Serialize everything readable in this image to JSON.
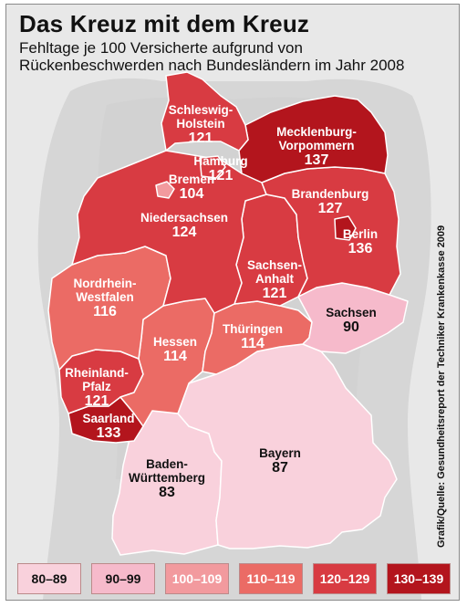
{
  "title": "Das Kreuz mit dem Kreuz",
  "subtitle": "Fehltage je 100 Versicherte aufgrund von Rückenbeschwerden nach Bundesländern im Jahr 2008",
  "source": "Grafik/Quelle: Gesundheitsreport der Techniker Krankenkasse 2009",
  "legend": [
    {
      "label": "80–89",
      "color": "#f9d1dc"
    },
    {
      "label": "90–99",
      "color": "#f6bacb"
    },
    {
      "label": "100–109",
      "color": "#f29a9e"
    },
    {
      "label": "110–119",
      "color": "#eb6b65"
    },
    {
      "label": "120–129",
      "color": "#d83b42"
    },
    {
      "label": "130–139",
      "color": "#b3151d"
    }
  ],
  "states": [
    {
      "id": "schleswig-holstein",
      "name": "Schleswig-Holstein",
      "name_lines": [
        "Schleswig-",
        "Holstein"
      ],
      "value": 121,
      "color": "#d83b42"
    },
    {
      "id": "hamburg",
      "name": "Hamburg",
      "name_lines": [
        "Hamburg"
      ],
      "value": 121,
      "color": "#d83b42"
    },
    {
      "id": "mecklenburg-vorpommern",
      "name": "Mecklenburg-Vorpommern",
      "name_lines": [
        "Mecklenburg-",
        "Vorpommern"
      ],
      "value": 137,
      "color": "#b3151d"
    },
    {
      "id": "bremen",
      "name": "Bremen",
      "name_lines": [
        "Bremen"
      ],
      "value": 104,
      "color": "#f29a9e"
    },
    {
      "id": "niedersachsen",
      "name": "Niedersachsen",
      "name_lines": [
        "Niedersachsen"
      ],
      "value": 124,
      "color": "#d83b42"
    },
    {
      "id": "brandenburg",
      "name": "Brandenburg",
      "name_lines": [
        "Brandenburg"
      ],
      "value": 127,
      "color": "#d83b42"
    },
    {
      "id": "berlin",
      "name": "Berlin",
      "name_lines": [
        "Berlin"
      ],
      "value": 136,
      "color": "#b3151d"
    },
    {
      "id": "sachsen-anhalt",
      "name": "Sachsen-Anhalt",
      "name_lines": [
        "Sachsen-",
        "Anhalt"
      ],
      "value": 121,
      "color": "#d83b42"
    },
    {
      "id": "nordrhein-westfalen",
      "name": "Nordrhein-Westfalen",
      "name_lines": [
        "Nordrhein-",
        "Westfalen"
      ],
      "value": 116,
      "color": "#eb6b65"
    },
    {
      "id": "sachsen",
      "name": "Sachsen",
      "name_lines": [
        "Sachsen"
      ],
      "value": 90,
      "color": "#f6bacb"
    },
    {
      "id": "hessen",
      "name": "Hessen",
      "name_lines": [
        "Hessen"
      ],
      "value": 114,
      "color": "#eb6b65"
    },
    {
      "id": "thueringen",
      "name": "Thüringen",
      "name_lines": [
        "Thüringen"
      ],
      "value": 114,
      "color": "#eb6b65"
    },
    {
      "id": "rheinland-pfalz",
      "name": "Rheinland-Pfalz",
      "name_lines": [
        "Rheinland-",
        "Pfalz"
      ],
      "value": 121,
      "color": "#d83b42"
    },
    {
      "id": "saarland",
      "name": "Saarland",
      "name_lines": [
        "Saarland"
      ],
      "value": 133,
      "color": "#b3151d"
    },
    {
      "id": "bayern",
      "name": "Bayern",
      "name_lines": [
        "Bayern"
      ],
      "value": 87,
      "color": "#f9d1dc"
    },
    {
      "id": "baden-wuerttemberg",
      "name": "Baden-Württemberg",
      "name_lines": [
        "Baden-",
        "Württemberg"
      ],
      "value": 83,
      "color": "#f9d1dc"
    }
  ]
}
